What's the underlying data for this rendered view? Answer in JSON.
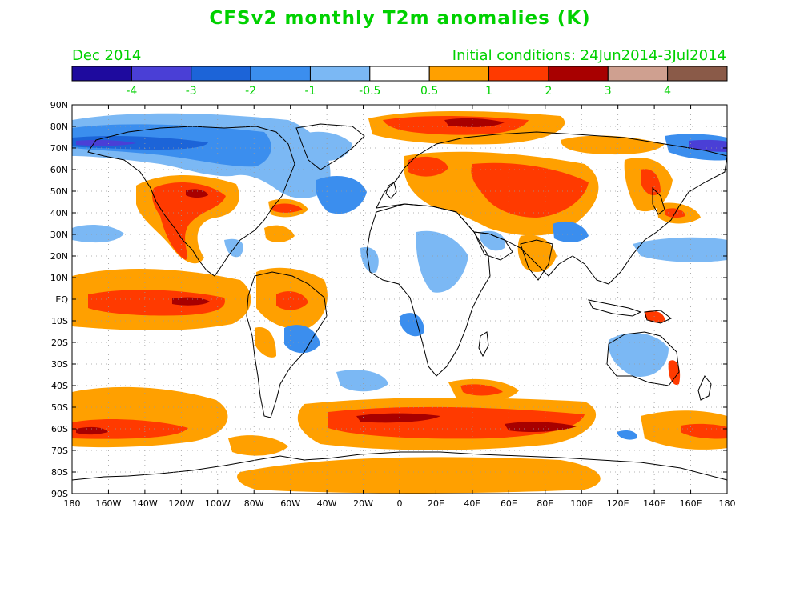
{
  "header": {
    "title": "CFSv2 monthly T2m anomalies (K)",
    "month": "Dec 2014",
    "initial_conditions": "Initial conditions: 24Jun2014-3Jul2014"
  },
  "legend": {
    "colors": [
      "#1e0a9e",
      "#4a3fd6",
      "#1c64d8",
      "#3b8eee",
      "#7bb8f4",
      "#ffffff",
      "#ffa000",
      "#ff3a00",
      "#a80000",
      "#cfa090",
      "#8a5a48"
    ],
    "labels": [
      "-4",
      "-3",
      "-2",
      "-1",
      "-0.5",
      "0.5",
      "1",
      "2",
      "3",
      "4"
    ]
  },
  "axes": {
    "lat_labels": [
      "90N",
      "80N",
      "70N",
      "60N",
      "50N",
      "40N",
      "30N",
      "20N",
      "10N",
      "EQ",
      "10S",
      "20S",
      "30S",
      "40S",
      "50S",
      "60S",
      "70S",
      "80S",
      "90S"
    ],
    "lon_labels": [
      "180",
      "160W",
      "140W",
      "120W",
      "100W",
      "80W",
      "60W",
      "40W",
      "20W",
      "0",
      "20E",
      "40E",
      "60E",
      "80E",
      "100E",
      "120E",
      "140E",
      "160E",
      "180"
    ]
  },
  "colors": {
    "text_green": "#00d100",
    "warm_1": "#ffa000",
    "warm_2": "#ff3a00",
    "warm_3": "#a80000",
    "cool_1": "#7bb8f4",
    "cool_2": "#3b8eee",
    "cool_3": "#1c64d8",
    "cool_4": "#4a3fd6"
  }
}
